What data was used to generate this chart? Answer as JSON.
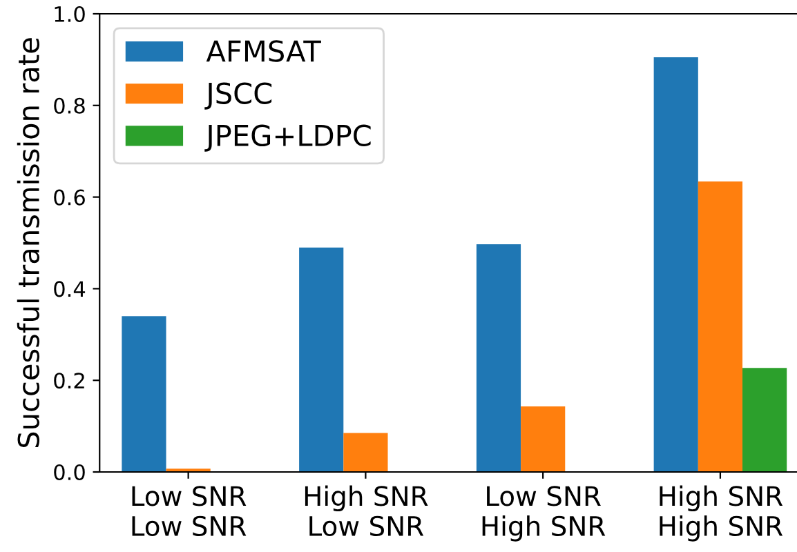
{
  "chart_data": {
    "type": "bar",
    "ylabel": "Successful transmission rate",
    "categories": [
      "Low SNR\nLow SNR",
      "High SNR\nLow SNR",
      "Low SNR\nHigh SNR",
      "High SNR\nHigh SNR"
    ],
    "series": [
      {
        "name": "AFMSAT",
        "color": "#1f77b4",
        "values": [
          0.34,
          0.49,
          0.497,
          0.905
        ]
      },
      {
        "name": "JSCC",
        "color": "#ff7f0e",
        "values": [
          0.007,
          0.085,
          0.143,
          0.634
        ]
      },
      {
        "name": "JPEG+LDPC",
        "color": "#2ca02c",
        "values": [
          0,
          0,
          0,
          0.227
        ]
      }
    ],
    "ylim": [
      0,
      1.0
    ],
    "yticks": [
      {
        "value": 0,
        "label": "0.0"
      },
      0.2,
      0.4,
      0.6,
      0.8,
      {
        "value": 1,
        "label": "1.0"
      }
    ],
    "grid": false,
    "legend": "top left"
  }
}
